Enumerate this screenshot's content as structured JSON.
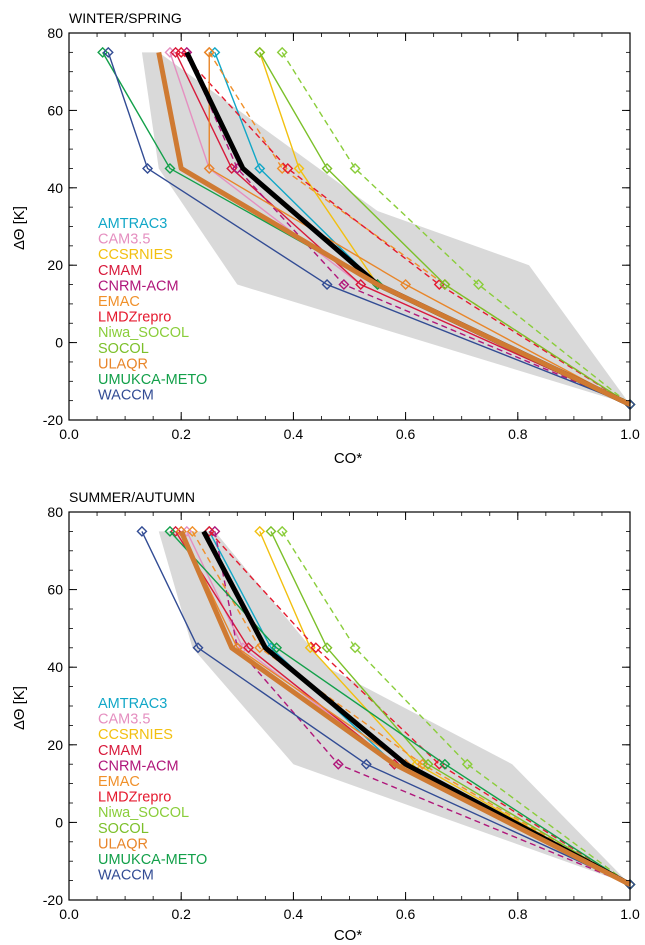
{
  "chart_data": [
    {
      "type": "line",
      "title": "WINTER/SPRING",
      "xlabel": "CO*",
      "ylabel": "ΔΘ  [K]",
      "xlim": [
        0.0,
        1.0
      ],
      "ylim": [
        -20,
        80
      ],
      "xticks": [
        "0.0",
        "0.2",
        "0.4",
        "0.6",
        "0.8",
        "1.0"
      ],
      "yticks": [
        "-20",
        "0",
        "20",
        "40",
        "60",
        "80"
      ],
      "shading": [
        [
          0.13,
          75
        ],
        [
          0.16,
          75
        ],
        [
          0.55,
          34
        ],
        [
          0.82,
          20
        ],
        [
          1.0,
          -16
        ],
        [
          0.3,
          15
        ],
        [
          0.16,
          45
        ],
        [
          0.13,
          75
        ]
      ],
      "series": [
        {
          "name": "AMTRAC3",
          "color": "#11a7c7",
          "dash": false,
          "width": 1.4,
          "x": [
            0.26,
            0.34,
            0.55,
            1.0
          ],
          "y": [
            75,
            45,
            15,
            -16
          ]
        },
        {
          "name": "CAM3.5",
          "color": "#e58fc0",
          "dash": false,
          "width": 1.4,
          "x": [
            0.18,
            0.25,
            0.52,
            1.0
          ],
          "y": [
            75,
            45,
            15,
            -16
          ]
        },
        {
          "name": "CCSRNIES",
          "color": "#f2c010",
          "dash": false,
          "width": 1.4,
          "x": [
            0.34,
            0.41,
            0.55,
            1.0
          ],
          "y": [
            75,
            45,
            15,
            -16
          ]
        },
        {
          "name": "CMAM",
          "color": "#d81b3c",
          "dash": false,
          "width": 1.4,
          "x": [
            0.19,
            0.29,
            0.52,
            1.0
          ],
          "y": [
            75,
            45,
            15,
            -16
          ]
        },
        {
          "name": "CNRM-ACM",
          "color": "#b0167a",
          "dash": true,
          "width": 1.4,
          "x": [
            0.21,
            0.3,
            0.49,
            1.0
          ],
          "y": [
            75,
            45,
            15,
            -16
          ]
        },
        {
          "name": "EMAC",
          "color": "#f0902a",
          "dash": true,
          "width": 1.4,
          "x": [
            0.25,
            0.38,
            0.67,
            1.0
          ],
          "y": [
            75,
            45,
            15,
            -16
          ]
        },
        {
          "name": "LMDZrepro",
          "color": "#e5192e",
          "dash": true,
          "width": 1.4,
          "x": [
            0.2,
            0.39,
            0.66,
            1.0
          ],
          "y": [
            75,
            45,
            15,
            -16
          ]
        },
        {
          "name": "Niwa_SOCOL",
          "color": "#8acd3a",
          "dash": true,
          "width": 1.4,
          "x": [
            0.38,
            0.51,
            0.73,
            1.0
          ],
          "y": [
            75,
            45,
            15,
            -16
          ]
        },
        {
          "name": "SOCOL",
          "color": "#7cc02a",
          "dash": false,
          "width": 1.4,
          "x": [
            0.34,
            0.46,
            0.67,
            1.0
          ],
          "y": [
            75,
            45,
            15,
            -16
          ]
        },
        {
          "name": "ULAQR",
          "color": "#e8862a",
          "dash": false,
          "width": 1.4,
          "x": [
            0.25,
            0.25,
            0.6,
            1.0
          ],
          "y": [
            75,
            45,
            15,
            -16
          ]
        },
        {
          "name": "UMUKCA-METO",
          "color": "#13a04a",
          "dash": false,
          "width": 1.4,
          "x": [
            0.06,
            0.18,
            0.55,
            1.0
          ],
          "y": [
            75,
            45,
            15,
            -16
          ]
        },
        {
          "name": "WACCM",
          "color": "#324c94",
          "dash": false,
          "width": 1.4,
          "x": [
            0.07,
            0.14,
            0.46,
            1.0
          ],
          "y": [
            75,
            45,
            15,
            -16
          ]
        },
        {
          "name": "",
          "color": "#000000",
          "dash": false,
          "width": 5,
          "marker": false,
          "x": [
            0.21,
            0.31,
            0.55,
            1.0
          ],
          "y": [
            75,
            45,
            15,
            -16
          ]
        },
        {
          "name": "",
          "color": "#cf7a32",
          "dash": false,
          "width": 5,
          "marker": false,
          "x": [
            0.16,
            0.2,
            0.55,
            1.0
          ],
          "y": [
            75,
            45,
            15,
            -16
          ]
        }
      ],
      "legend": {
        "position": "left"
      }
    },
    {
      "type": "line",
      "title": "SUMMER/AUTUMN",
      "xlabel": "CO*",
      "ylabel": "ΔΘ  [K]",
      "xlim": [
        0.0,
        1.0
      ],
      "ylim": [
        -20,
        80
      ],
      "xticks": [
        "0.0",
        "0.2",
        "0.4",
        "0.6",
        "0.8",
        "1.0"
      ],
      "yticks": [
        "-20",
        "0",
        "20",
        "40",
        "60",
        "80"
      ],
      "shading": [
        [
          0.16,
          75
        ],
        [
          0.26,
          75
        ],
        [
          0.46,
          40
        ],
        [
          0.79,
          15
        ],
        [
          1.0,
          -16
        ],
        [
          0.4,
          15
        ],
        [
          0.22,
          45
        ],
        [
          0.16,
          75
        ]
      ],
      "series": [
        {
          "name": "AMTRAC3",
          "color": "#11a7c7",
          "dash": false,
          "width": 1.4,
          "x": [
            0.25,
            0.36,
            0.58,
            1.0
          ],
          "y": [
            75,
            45,
            15,
            -16
          ]
        },
        {
          "name": "CAM3.5",
          "color": "#e58fc0",
          "dash": false,
          "width": 1.4,
          "x": [
            0.21,
            0.31,
            0.58,
            1.0
          ],
          "y": [
            75,
            45,
            15,
            -16
          ]
        },
        {
          "name": "CCSRNIES",
          "color": "#f2c010",
          "dash": false,
          "width": 1.4,
          "x": [
            0.34,
            0.43,
            0.62,
            1.0
          ],
          "y": [
            75,
            45,
            15,
            -16
          ]
        },
        {
          "name": "CMAM",
          "color": "#d81b3c",
          "dash": false,
          "width": 1.4,
          "x": [
            0.19,
            0.32,
            0.58,
            1.0
          ],
          "y": [
            75,
            45,
            15,
            -16
          ]
        },
        {
          "name": "CNRM-ACM",
          "color": "#b0167a",
          "dash": true,
          "width": 1.4,
          "x": [
            0.26,
            0.3,
            0.48,
            1.0
          ],
          "y": [
            75,
            45,
            15,
            -16
          ]
        },
        {
          "name": "EMAC",
          "color": "#f0902a",
          "dash": true,
          "width": 1.4,
          "x": [
            0.22,
            0.34,
            0.63,
            1.0
          ],
          "y": [
            75,
            45,
            15,
            -16
          ]
        },
        {
          "name": "LMDZrepro",
          "color": "#e5192e",
          "dash": true,
          "width": 1.4,
          "x": [
            0.25,
            0.44,
            0.66,
            1.0
          ],
          "y": [
            75,
            45,
            15,
            -16
          ]
        },
        {
          "name": "Niwa_SOCOL",
          "color": "#8acd3a",
          "dash": true,
          "width": 1.4,
          "x": [
            0.38,
            0.51,
            0.71,
            1.0
          ],
          "y": [
            75,
            45,
            15,
            -16
          ]
        },
        {
          "name": "SOCOL",
          "color": "#7cc02a",
          "dash": false,
          "width": 1.4,
          "x": [
            0.36,
            0.46,
            0.64,
            1.0
          ],
          "y": [
            75,
            45,
            15,
            -16
          ]
        },
        {
          "name": "ULAQR",
          "color": "#e8862a",
          "dash": false,
          "width": 1.4,
          "x": [
            0.2,
            0.3,
            0.6,
            1.0
          ],
          "y": [
            75,
            45,
            15,
            -16
          ]
        },
        {
          "name": "UMUKCA-METO",
          "color": "#13a04a",
          "dash": false,
          "width": 1.4,
          "x": [
            0.18,
            0.37,
            0.67,
            1.0
          ],
          "y": [
            75,
            45,
            15,
            -16
          ]
        },
        {
          "name": "WACCM",
          "color": "#324c94",
          "dash": false,
          "width": 1.4,
          "x": [
            0.13,
            0.23,
            0.53,
            1.0
          ],
          "y": [
            75,
            45,
            15,
            -16
          ]
        },
        {
          "name": "",
          "color": "#000000",
          "dash": false,
          "width": 5,
          "marker": false,
          "x": [
            0.24,
            0.35,
            0.6,
            1.0
          ],
          "y": [
            75,
            45,
            15,
            -16
          ]
        },
        {
          "name": "",
          "color": "#cf7a32",
          "dash": false,
          "width": 5,
          "marker": false,
          "x": [
            0.2,
            0.29,
            0.58,
            1.0
          ],
          "y": [
            75,
            45,
            15,
            -16
          ]
        }
      ],
      "legend": {
        "position": "left"
      }
    }
  ]
}
